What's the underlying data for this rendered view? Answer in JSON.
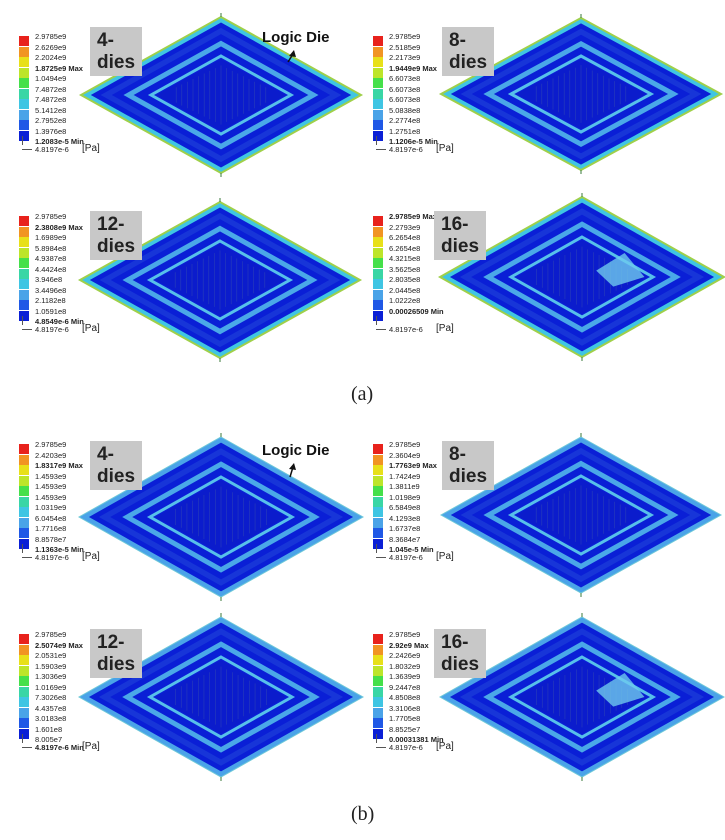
{
  "colors": {
    "red": "#e8221c",
    "orange": "#f19423",
    "yellow": "#e8e019",
    "yellowgreen": "#bde52a",
    "green": "#45e04a",
    "teal": "#39d6a5",
    "cyan": "#3fc5e3",
    "lightblue": "#4aa3e8",
    "blue": "#1f58e6",
    "darkblue": "#0a1fd6",
    "plate_edge": "#9fd04a"
  },
  "annotation": "Logic Die",
  "unit": "[Pa]",
  "captions": {
    "a": "(a)",
    "b": "(b)"
  },
  "panels_a": [
    {
      "title": "4-dies",
      "ticks": [
        "2.9785e9",
        "2.6269e9",
        "2.2024e9",
        "1.8725e9 Max",
        "1.0494e9",
        "7.4872e8",
        "7.4872e8",
        "5.1412e8",
        "2.7952e8",
        "1.3976e8",
        "1.2083e-5 Min",
        "4.8197e-6"
      ],
      "bold": [
        3,
        10
      ]
    },
    {
      "title": "8-dies",
      "ticks": [
        "2.9785e9",
        "2.5185e9",
        "2.2173e9",
        "1.9449e9 Max",
        "6.6073e8",
        "6.6073e8",
        "6.6073e8",
        "5.0838e8",
        "2.2774e8",
        "1.2751e8",
        "1.1206e-5 Min",
        "4.8197e-6"
      ],
      "bold": [
        3,
        10
      ]
    },
    {
      "title": "12-dies",
      "ticks": [
        "2.9785e9",
        "2.3808e9 Max",
        "1.6989e9",
        "5.8984e8",
        "4.9387e8",
        "4.4424e8",
        "3.946e8",
        "3.4496e8",
        "2.1182e8",
        "1.0591e8",
        "4.8549e-6 Min",
        "4.8197e-6"
      ],
      "bold": [
        1,
        10
      ]
    },
    {
      "title": "16-dies",
      "ticks": [
        "2.9785e9 Max",
        "2.2793e9",
        "6.2654e8",
        "6.2654e8",
        "4.3215e8",
        "3.5625e8",
        "2.8035e8",
        "2.0445e8",
        "1.0222e8",
        "0.00026509 Min",
        "4.8197e-6"
      ],
      "bold": [
        0,
        9
      ]
    }
  ],
  "panels_b": [
    {
      "title": "4-dies",
      "ticks": [
        "2.9785e9",
        "2.4203e9",
        "1.8317e9 Max",
        "1.4593e9",
        "1.4593e9",
        "1.4593e9",
        "1.0319e9",
        "6.0454e8",
        "1.7716e8",
        "8.8578e7",
        "1.1363e-5 Min",
        "4.8197e-6"
      ],
      "bold": [
        2,
        10
      ]
    },
    {
      "title": "8-dies",
      "ticks": [
        "2.9785e9",
        "2.3604e9",
        "1.7763e9 Max",
        "1.7424e9",
        "1.3811e9",
        "1.0198e9",
        "6.5849e8",
        "4.1293e8",
        "1.6737e8",
        "8.3684e7",
        "1.045e-5 Min",
        "4.8197e-6"
      ],
      "bold": [
        2,
        10
      ]
    },
    {
      "title": "12-dies",
      "ticks": [
        "2.9785e9",
        "2.5074e9 Max",
        "2.0531e9",
        "1.5903e9",
        "1.3036e9",
        "1.0169e9",
        "7.3026e8",
        "4.4357e8",
        "3.0183e8",
        "1.601e8",
        "8.005e7",
        "4.8197e-6 Min"
      ],
      "bold": [
        1,
        11
      ]
    },
    {
      "title": "16-dies",
      "ticks": [
        "2.9785e9",
        "2.92e9 Max",
        "2.2426e9",
        "1.8032e9",
        "1.3639e9",
        "9.2447e8",
        "4.8508e8",
        "3.3106e8",
        "1.7705e8",
        "8.8525e7",
        "0.00031381 Min",
        "4.8197e-6"
      ],
      "bold": [
        1,
        10
      ]
    }
  ]
}
